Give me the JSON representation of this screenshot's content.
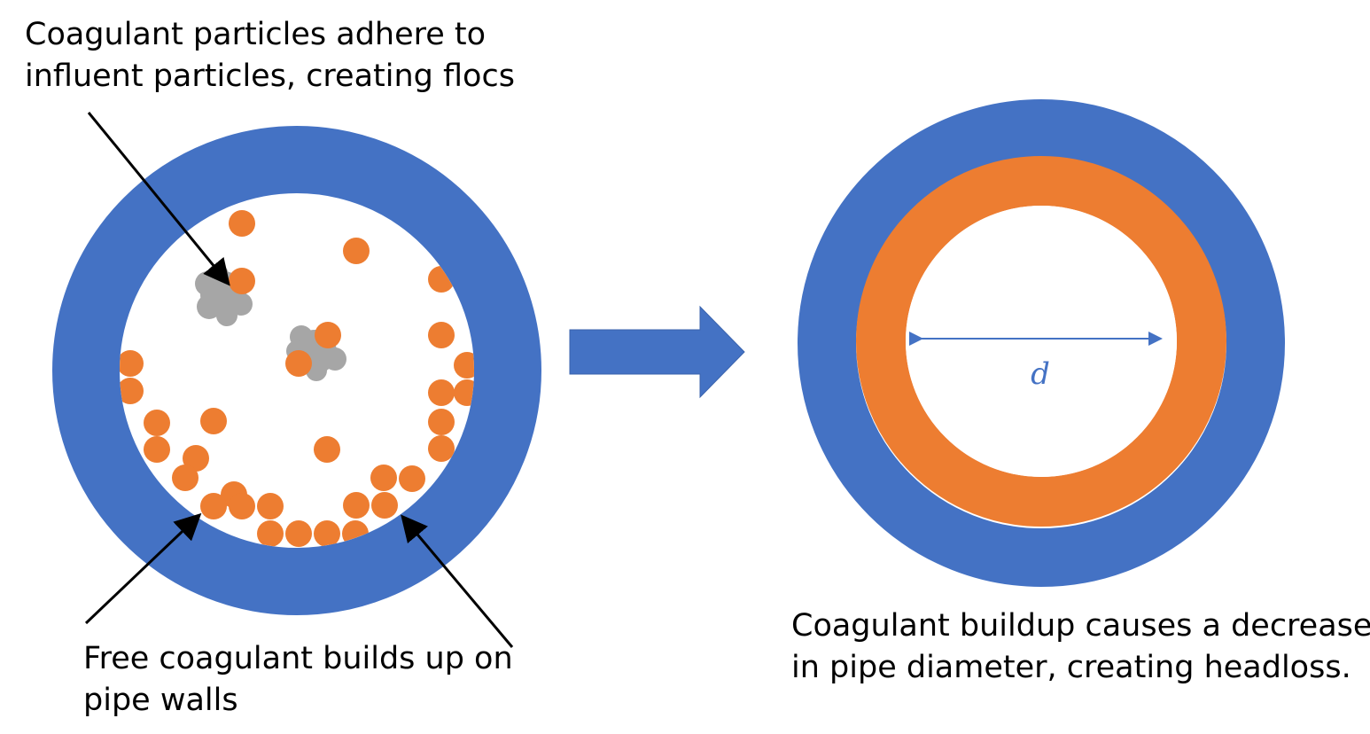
{
  "labels": {
    "flocs": [
      "Coagulant particles adhere to",
      "influent particles, creating flocs"
    ],
    "walls": [
      "Free coagulant builds up on",
      "pipe walls"
    ],
    "headloss": [
      "Coagulant buildup causes a decrease",
      "in pipe diameter, creating headloss."
    ],
    "diameter_symbol": "d"
  },
  "colors": {
    "pipe_wall": "#4472c4",
    "coagulant": "#ed7d31",
    "influent_particle": "#a6a6a6",
    "arrow": "#000000"
  }
}
